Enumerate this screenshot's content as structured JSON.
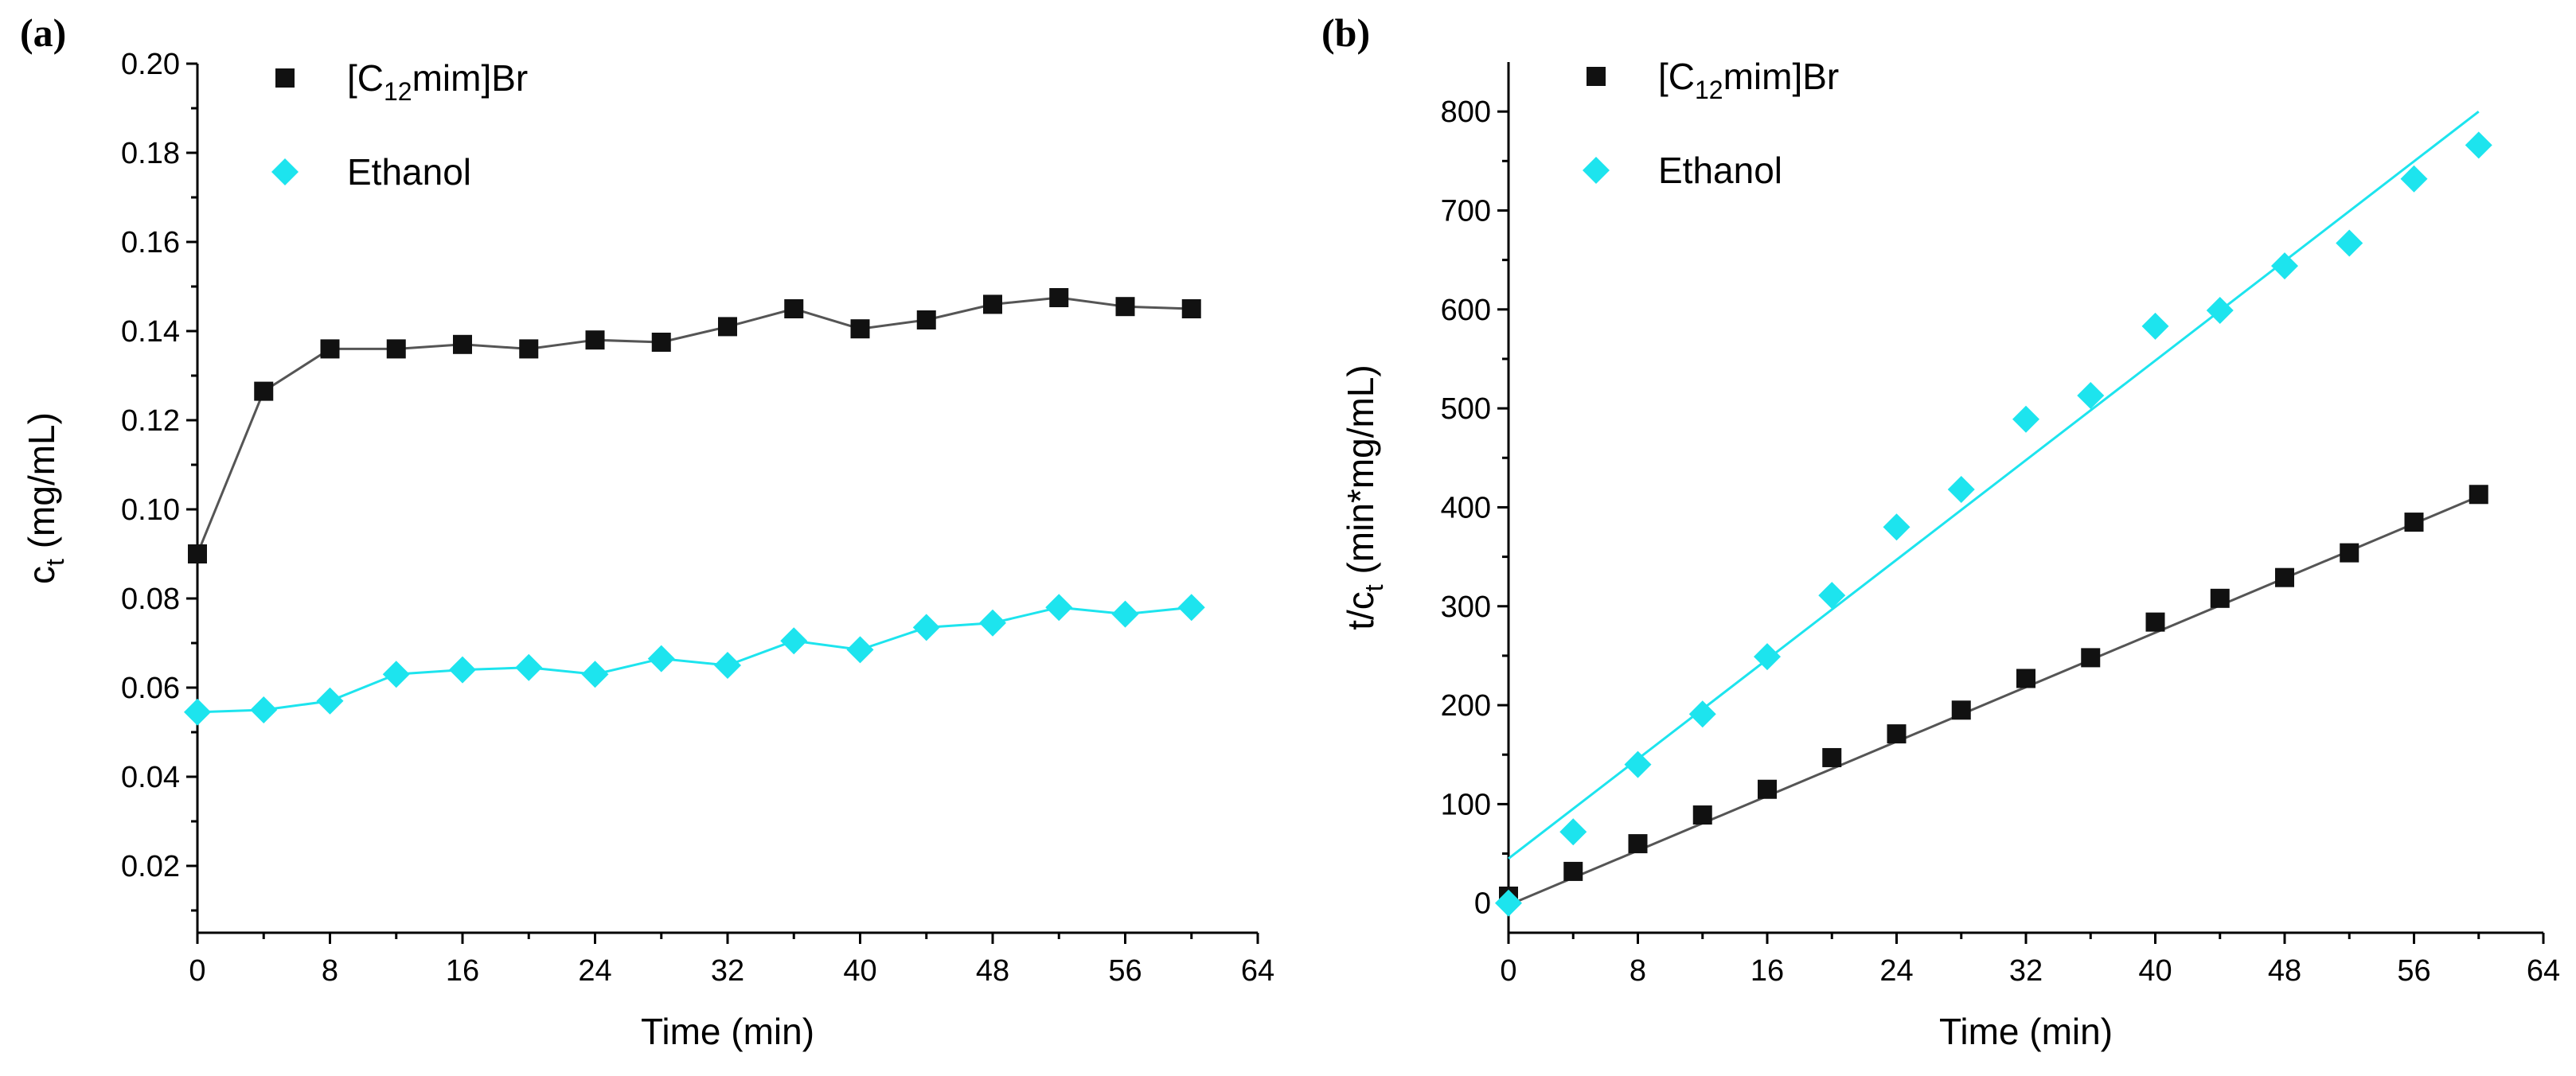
{
  "figure": {
    "panels": [
      "(a)",
      "(b)"
    ]
  },
  "colors": {
    "c12": "#111111",
    "c12_line": "#555555",
    "ethanol": "#1de4ee",
    "ethanol_line": "#1de4ee"
  },
  "chart_data": [
    {
      "type": "line",
      "panel": "(a)",
      "title": "",
      "xlabel": "Time (min)",
      "ylabel": "c",
      "ylabel_sub": "t",
      "ylabel_suffix": " (mg/mL)",
      "xlim": [
        0,
        64
      ],
      "ylim": [
        0.005,
        0.2
      ],
      "xticks": [
        0,
        8,
        16,
        24,
        32,
        40,
        48,
        56,
        64
      ],
      "yticks": [
        0.02,
        0.04,
        0.06,
        0.08,
        0.1,
        0.12,
        0.14,
        0.16,
        0.18,
        0.2
      ],
      "ytick_labels": [
        "0.02",
        "0.04",
        "0.06",
        "0.08",
        "0.10",
        "0.12",
        "0.14",
        "0.16",
        "0.18",
        "0.20"
      ],
      "legend_position": "top-left",
      "grid": false,
      "series": [
        {
          "name": "[C12mim]Br",
          "name_main": "[C",
          "name_sub": "12",
          "name_rest": "mim]Br",
          "marker": "square",
          "connect": true,
          "x": [
            0,
            4,
            8,
            12,
            16,
            20,
            24,
            28,
            32,
            36,
            40,
            44,
            48,
            52,
            56,
            60
          ],
          "y": [
            0.09,
            0.1265,
            0.136,
            0.136,
            0.137,
            0.136,
            0.138,
            0.1375,
            0.141,
            0.145,
            0.1405,
            0.1425,
            0.146,
            0.1475,
            0.1455,
            0.145
          ]
        },
        {
          "name": "Ethanol",
          "marker": "diamond",
          "connect": true,
          "x": [
            0,
            4,
            8,
            12,
            16,
            20,
            24,
            28,
            32,
            36,
            40,
            44,
            48,
            52,
            56,
            60
          ],
          "y": [
            0.0545,
            0.055,
            0.057,
            0.063,
            0.064,
            0.0645,
            0.063,
            0.0665,
            0.065,
            0.0705,
            0.0685,
            0.0735,
            0.0745,
            0.078,
            0.0765,
            0.078
          ]
        }
      ]
    },
    {
      "type": "scatter",
      "panel": "(b)",
      "title": "",
      "xlabel": "Time (min)",
      "ylabel": "t/c",
      "ylabel_sub": "t",
      "ylabel_suffix": " (min*mg/mL)",
      "xlim": [
        0,
        64
      ],
      "ylim": [
        -30,
        850
      ],
      "xticks": [
        0,
        8,
        16,
        24,
        32,
        40,
        48,
        56,
        64
      ],
      "yticks": [
        0,
        100,
        200,
        300,
        400,
        500,
        600,
        700,
        800
      ],
      "ytick_labels": [
        "0",
        "100",
        "200",
        "300",
        "400",
        "500",
        "600",
        "700",
        "800"
      ],
      "legend_position": "top-left",
      "grid": false,
      "series": [
        {
          "name": "[C12mim]Br",
          "name_main": "[C",
          "name_sub": "12",
          "name_rest": "mim]Br",
          "marker": "square",
          "x": [
            0,
            4,
            8,
            12,
            16,
            20,
            24,
            28,
            32,
            36,
            40,
            44,
            48,
            52,
            56,
            60
          ],
          "y": [
            7,
            32,
            60,
            89,
            115,
            147,
            171,
            195,
            227,
            248,
            284,
            308,
            329,
            354,
            385,
            413
          ],
          "fit": {
            "x": [
              0,
              60
            ],
            "y": [
              -2,
              411
            ]
          }
        },
        {
          "name": "Ethanol",
          "marker": "diamond",
          "x": [
            0,
            4,
            8,
            12,
            16,
            20,
            24,
            28,
            32,
            36,
            40,
            44,
            48,
            52,
            56,
            60
          ],
          "y": [
            0,
            72,
            140,
            191,
            249,
            311,
            380,
            418,
            489,
            513,
            583,
            599,
            644,
            667,
            732,
            766
          ],
          "fit": {
            "x": [
              0,
              60
            ],
            "y": [
              45,
              800
            ]
          }
        }
      ]
    }
  ]
}
